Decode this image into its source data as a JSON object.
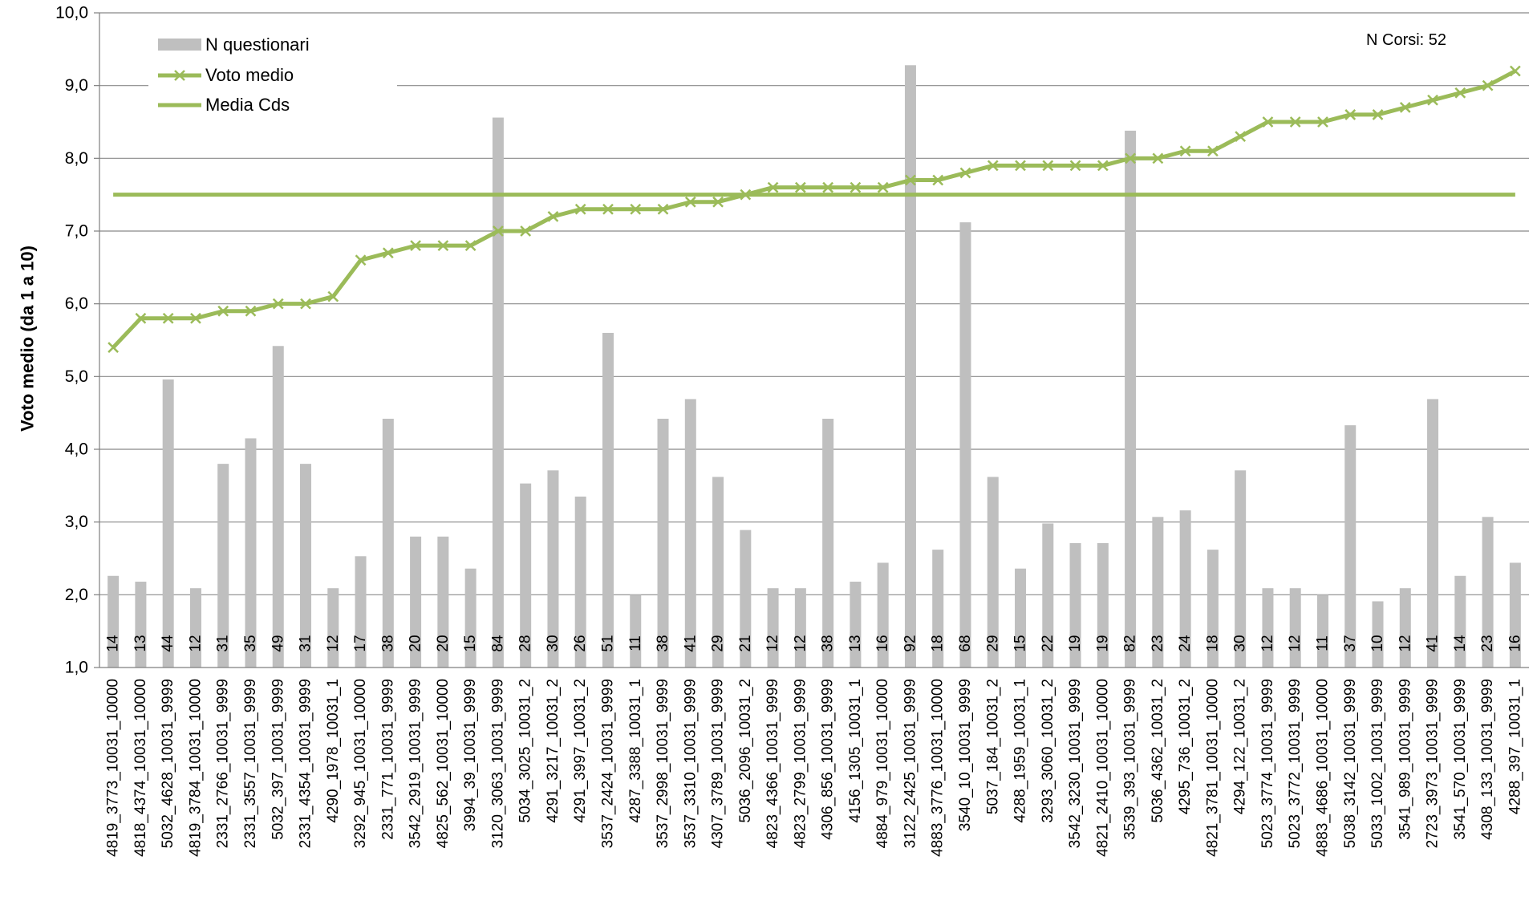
{
  "chart_data": {
    "type": "bar",
    "ylabel": "Voto medio (da 1 a 10)",
    "ylim": [
      1,
      10
    ],
    "ytick_labels": [
      "1,0",
      "2,0",
      "3,0",
      "4,0",
      "5,0",
      "6,0",
      "7,0",
      "8,0",
      "9,0",
      "10,0"
    ],
    "grid": true,
    "legend_position": "top-left",
    "annotation": "N Corsi: 52",
    "colors": {
      "bars": "#bfbfbf",
      "line": "#9bbb59",
      "grid": "#898989",
      "axis": "#7f7f7f"
    },
    "categories": [
      "4819_3773_10031_10000",
      "4818_4374_10031_10000",
      "5032_4628_10031_9999",
      "4819_3784_10031_10000",
      "2331_2766_10031_9999",
      "2331_3557_10031_9999",
      "5032_397_10031_9999",
      "2331_4354_10031_9999",
      "4290_1978_10031_1",
      "3292_945_10031_10000",
      "2331_771_10031_9999",
      "3542_2919_10031_9999",
      "4825_562_10031_10000",
      "3994_39_10031_9999",
      "3120_3063_10031_9999",
      "5034_3025_10031_2",
      "4291_3217_10031_2",
      "4291_3997_10031_2",
      "3537_2424_10031_9999",
      "4287_3388_10031_1",
      "3537_2998_10031_9999",
      "3537_3310_10031_9999",
      "4307_3789_10031_9999",
      "5036_2096_10031_2",
      "4823_4366_10031_9999",
      "4823_2799_10031_9999",
      "4306_856_10031_9999",
      "4156_1305_10031_1",
      "4884_979_10031_10000",
      "3122_2425_10031_9999",
      "4883_3776_10031_10000",
      "3540_10_10031_9999",
      "5037_184_10031_2",
      "4288_1959_10031_1",
      "3293_3060_10031_2",
      "3542_3230_10031_9999",
      "4821_2410_10031_10000",
      "3539_393_10031_9999",
      "5036_4362_10031_2",
      "4295_736_10031_2",
      "4821_3781_10031_10000",
      "4294_122_10031_2",
      "5023_3774_10031_9999",
      "5023_3772_10031_9999",
      "4883_4686_10031_10000",
      "5038_3142_10031_9999",
      "5033_1002_10031_9999",
      "3541_989_10031_9999",
      "2723_3973_10031_9999",
      "3541_570_10031_9999",
      "4308_133_10031_9999",
      "4288_397_10031_1"
    ],
    "series": [
      {
        "name": "N questionari",
        "kind": "bar",
        "counts": [
          "14",
          "13",
          "44",
          "12",
          "31",
          "35",
          "49",
          "31",
          "12",
          "17",
          "38",
          "20",
          "20",
          "15",
          "84",
          "28",
          "30",
          "26",
          "51",
          "11",
          "38",
          "41",
          "29",
          "21",
          "12",
          "12",
          "38",
          "13",
          "16",
          "92",
          "18",
          "68",
          "29",
          "15",
          "22",
          "19",
          "19",
          "82",
          "23",
          "24",
          "18",
          "30",
          "12",
          "12",
          "11",
          "37",
          "10",
          "12",
          "41",
          "14",
          "23",
          "16"
        ],
        "bar_tops": [
          2.26,
          2.18,
          4.96,
          2.09,
          3.8,
          4.15,
          5.42,
          3.8,
          2.09,
          2.53,
          4.42,
          2.8,
          2.8,
          2.36,
          8.56,
          3.53,
          3.71,
          3.35,
          5.6,
          2.0,
          4.42,
          4.69,
          3.62,
          2.89,
          2.09,
          2.09,
          4.42,
          2.18,
          2.44,
          9.28,
          2.62,
          7.12,
          3.62,
          2.36,
          2.98,
          2.71,
          2.71,
          8.38,
          3.07,
          3.16,
          2.62,
          3.71,
          2.09,
          2.09,
          2.0,
          4.33,
          1.91,
          2.09,
          4.69,
          2.26,
          3.07,
          2.44
        ]
      },
      {
        "name": "Voto medio",
        "kind": "line-marker",
        "values": [
          5.4,
          5.8,
          5.8,
          5.8,
          5.9,
          5.9,
          6.0,
          6.0,
          6.1,
          6.6,
          6.7,
          6.8,
          6.8,
          6.8,
          7.0,
          7.0,
          7.2,
          7.3,
          7.3,
          7.3,
          7.3,
          7.4,
          7.4,
          7.5,
          7.6,
          7.6,
          7.6,
          7.6,
          7.6,
          7.7,
          7.7,
          7.8,
          7.9,
          7.9,
          7.9,
          7.9,
          7.9,
          8.0,
          8.0,
          8.1,
          8.1,
          8.3,
          8.5,
          8.5,
          8.5,
          8.6,
          8.6,
          8.7,
          8.8,
          8.9,
          9.0,
          9.2
        ]
      },
      {
        "name": "Media Cds",
        "kind": "line",
        "value": 7.5
      }
    ]
  }
}
